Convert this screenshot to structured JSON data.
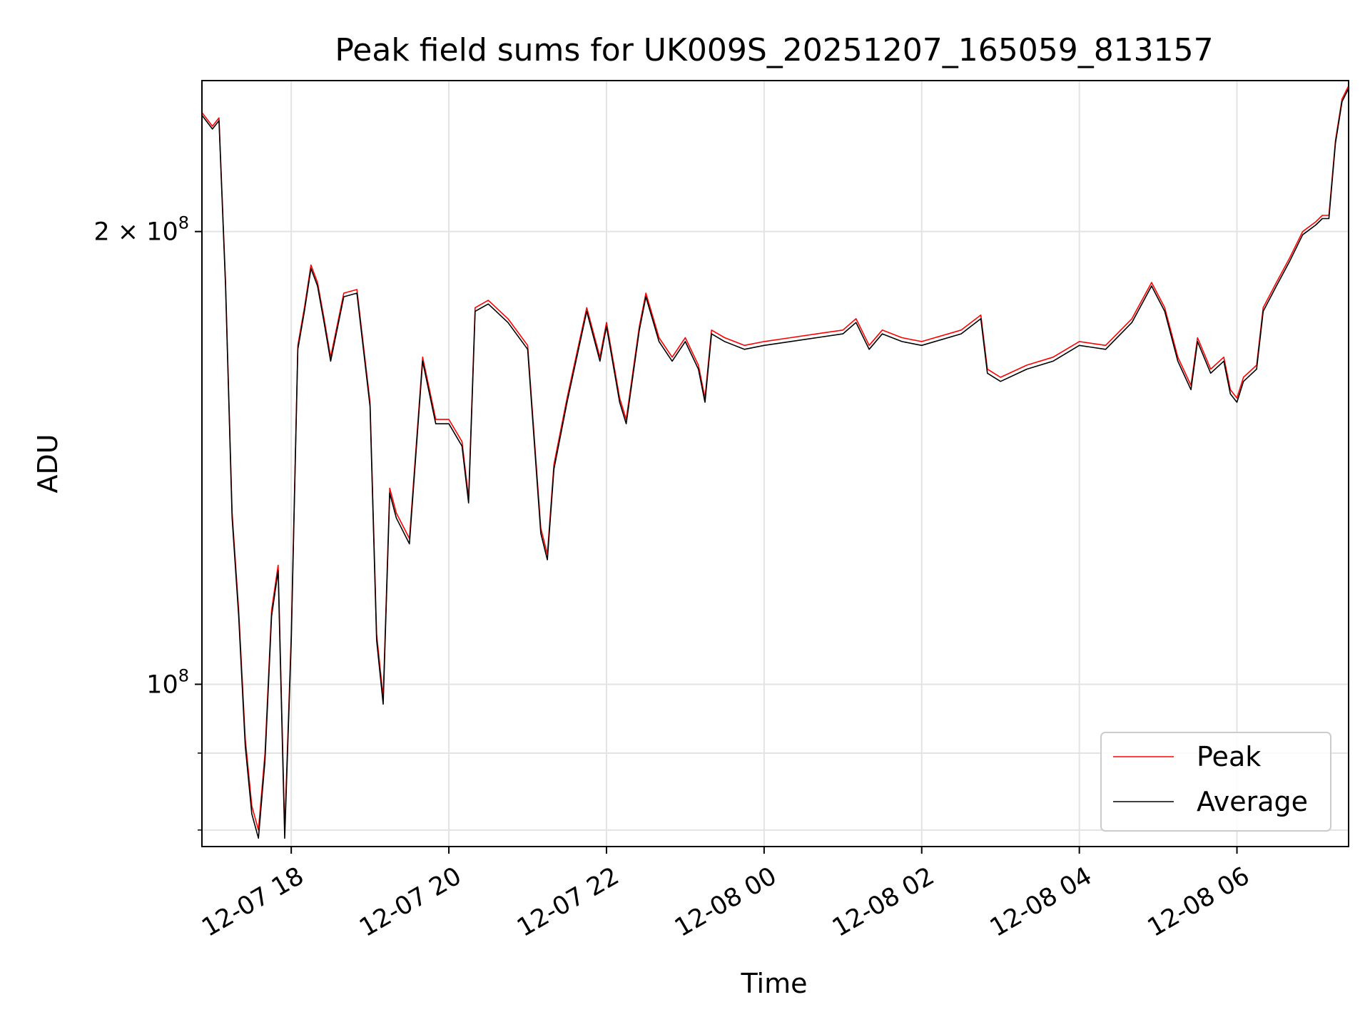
{
  "chart_data": {
    "type": "line",
    "title": "Peak field sums for UK009S_20251207_165059_813157",
    "xlabel": "Time",
    "ylabel": "ADU",
    "yscale": "log",
    "ylim": [
      78000000,
      252000000
    ],
    "xlim": [
      "2025-12-07 16:52",
      "2025-12-08 07:25"
    ],
    "x_ticks": [
      {
        "value": "2025-12-07 18:00",
        "label": "12-07 18"
      },
      {
        "value": "2025-12-07 20:00",
        "label": "12-07 20"
      },
      {
        "value": "2025-12-07 22:00",
        "label": "12-07 22"
      },
      {
        "value": "2025-12-08 00:00",
        "label": "12-08 00"
      },
      {
        "value": "2025-12-08 02:00",
        "label": "12-08 02"
      },
      {
        "value": "2025-12-08 04:00",
        "label": "12-08 04"
      },
      {
        "value": "2025-12-08 06:00",
        "label": "12-08 06"
      }
    ],
    "y_ticks": [
      {
        "value": 100000000,
        "label_base": "10",
        "label_exp": "8",
        "label_prefix": ""
      },
      {
        "value": 200000000,
        "label_base": "10",
        "label_exp": "8",
        "label_prefix": "2 × "
      }
    ],
    "y_minor_ticks": [
      80000000,
      90000000
    ],
    "grid": true,
    "legend": {
      "placement": "lower-right"
    },
    "x": [
      "2025-12-07 16:52",
      "2025-12-07 17:00",
      "2025-12-07 17:05",
      "2025-12-07 17:10",
      "2025-12-07 17:15",
      "2025-12-07 17:20",
      "2025-12-07 17:25",
      "2025-12-07 17:30",
      "2025-12-07 17:35",
      "2025-12-07 17:40",
      "2025-12-07 17:45",
      "2025-12-07 17:50",
      "2025-12-07 17:55",
      "2025-12-07 18:00",
      "2025-12-07 18:05",
      "2025-12-07 18:10",
      "2025-12-07 18:15",
      "2025-12-07 18:20",
      "2025-12-07 18:25",
      "2025-12-07 18:30",
      "2025-12-07 18:40",
      "2025-12-07 18:50",
      "2025-12-07 19:00",
      "2025-12-07 19:05",
      "2025-12-07 19:10",
      "2025-12-07 19:15",
      "2025-12-07 19:20",
      "2025-12-07 19:30",
      "2025-12-07 19:40",
      "2025-12-07 19:50",
      "2025-12-07 20:00",
      "2025-12-07 20:10",
      "2025-12-07 20:15",
      "2025-12-07 20:20",
      "2025-12-07 20:30",
      "2025-12-07 20:45",
      "2025-12-07 21:00",
      "2025-12-07 21:10",
      "2025-12-07 21:15",
      "2025-12-07 21:20",
      "2025-12-07 21:30",
      "2025-12-07 21:40",
      "2025-12-07 21:45",
      "2025-12-07 21:55",
      "2025-12-07 22:00",
      "2025-12-07 22:10",
      "2025-12-07 22:15",
      "2025-12-07 22:25",
      "2025-12-07 22:30",
      "2025-12-07 22:40",
      "2025-12-07 22:50",
      "2025-12-07 23:00",
      "2025-12-07 23:10",
      "2025-12-07 23:15",
      "2025-12-07 23:20",
      "2025-12-07 23:30",
      "2025-12-07 23:45",
      "2025-12-08 00:00",
      "2025-12-08 00:20",
      "2025-12-08 00:40",
      "2025-12-08 01:00",
      "2025-12-08 01:10",
      "2025-12-08 01:20",
      "2025-12-08 01:30",
      "2025-12-08 01:45",
      "2025-12-08 02:00",
      "2025-12-08 02:30",
      "2025-12-08 02:45",
      "2025-12-08 02:50",
      "2025-12-08 03:00",
      "2025-12-08 03:20",
      "2025-12-08 03:40",
      "2025-12-08 04:00",
      "2025-12-08 04:20",
      "2025-12-08 04:40",
      "2025-12-08 04:55",
      "2025-12-08 05:05",
      "2025-12-08 05:15",
      "2025-12-08 05:25",
      "2025-12-08 05:30",
      "2025-12-08 05:40",
      "2025-12-08 05:50",
      "2025-12-08 05:55",
      "2025-12-08 06:00",
      "2025-12-08 06:05",
      "2025-12-08 06:15",
      "2025-12-08 06:20",
      "2025-12-08 06:30",
      "2025-12-08 06:40",
      "2025-12-08 06:50",
      "2025-12-08 07:00",
      "2025-12-08 07:05",
      "2025-12-08 07:10",
      "2025-12-08 07:15",
      "2025-12-08 07:20",
      "2025-12-08 07:25"
    ],
    "series": [
      {
        "name": "Peak",
        "color": "#ff0000",
        "values": [
          240000000.0,
          235000000.0,
          238000000.0,
          185000000.0,
          130000000.0,
          112000000.0,
          92000000.0,
          83000000.0,
          80000000.0,
          90000000.0,
          112000000.0,
          120000000.0,
          80000000.0,
          108000000.0,
          168000000.0,
          178000000.0,
          190000000.0,
          185000000.0,
          175000000.0,
          165000000.0,
          182000000.0,
          183000000.0,
          154000000.0,
          108000000.0,
          98000000.0,
          135000000.0,
          130000000.0,
          125000000.0,
          165000000.0,
          150000000.0,
          150000000.0,
          145000000.0,
          133000000.0,
          178000000.0,
          180000000.0,
          175000000.0,
          168000000.0,
          127000000.0,
          122000000.0,
          140000000.0,
          155000000.0,
          170000000.0,
          178000000.0,
          165000000.0,
          174000000.0,
          155000000.0,
          150000000.0,
          173000000.0,
          182000000.0,
          170000000.0,
          165000000.0,
          170000000.0,
          163000000.0,
          155000000.0,
          172000000.0,
          170000000.0,
          168000000.0,
          169000000.0,
          170000000.0,
          171000000.0,
          172000000.0,
          175000000.0,
          168000000.0,
          172000000.0,
          170000000.0,
          169000000.0,
          172000000.0,
          176000000.0,
          162000000.0,
          160000000.0,
          163000000.0,
          165000000.0,
          169000000.0,
          168000000.0,
          175000000.0,
          185000000.0,
          178000000.0,
          165000000.0,
          158000000.0,
          170000000.0,
          162000000.0,
          165000000.0,
          157000000.0,
          155000000.0,
          160000000.0,
          163000000.0,
          178000000.0,
          185000000.0,
          192000000.0,
          200000000.0,
          203000000.0,
          205000000.0,
          205000000.0,
          230000000.0,
          245000000.0,
          250000000.0
        ]
      },
      {
        "name": "Average",
        "color": "#000000",
        "values": [
          239000000.0,
          234000000.0,
          237000000.0,
          184000000.0,
          129000000.0,
          111000000.0,
          91000000.0,
          82000000.0,
          79000000.0,
          89000000.0,
          111000000.0,
          119000000.0,
          79000000.0,
          107000000.0,
          167000000.0,
          177000000.0,
          189000000.0,
          184000000.0,
          174000000.0,
          164000000.0,
          181000000.0,
          182000000.0,
          153000000.0,
          107000000.0,
          97000000.0,
          134000000.0,
          129000000.0,
          124000000.0,
          164000000.0,
          149000000.0,
          149000000.0,
          144000000.0,
          132000000.0,
          177000000.0,
          179000000.0,
          174000000.0,
          167000000.0,
          126000000.0,
          121000000.0,
          139000000.0,
          154000000.0,
          169000000.0,
          177000000.0,
          164000000.0,
          173000000.0,
          154000000.0,
          149000000.0,
          172000000.0,
          181000000.0,
          169000000.0,
          164000000.0,
          169000000.0,
          162000000.0,
          154000000.0,
          171000000.0,
          169000000.0,
          167000000.0,
          168000000.0,
          169000000.0,
          170000000.0,
          171000000.0,
          174000000.0,
          167000000.0,
          171000000.0,
          169000000.0,
          168000000.0,
          171000000.0,
          175000000.0,
          161000000.0,
          159000000.0,
          162000000.0,
          164000000.0,
          168000000.0,
          167000000.0,
          174000000.0,
          184000000.0,
          177000000.0,
          164000000.0,
          157000000.0,
          169000000.0,
          161000000.0,
          164000000.0,
          156000000.0,
          154000000.0,
          159000000.0,
          162000000.0,
          177000000.0,
          184000000.0,
          191000000.0,
          199000000.0,
          202000000.0,
          204000000.0,
          204000000.0,
          229000000.0,
          244000000.0,
          249000000.0
        ]
      }
    ]
  }
}
